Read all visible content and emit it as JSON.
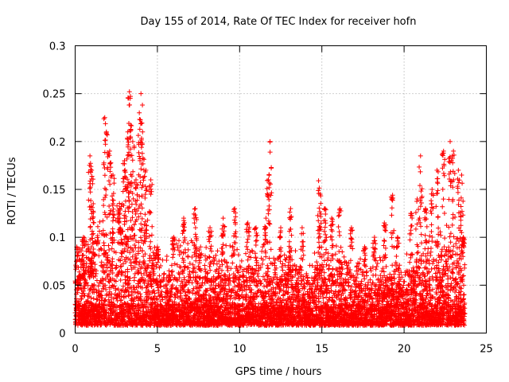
{
  "chart_data": {
    "type": "scatter",
    "title": "Day 155 of 2014, Rate Of TEC Index for receiver hofn",
    "xlabel": "GPS time / hours",
    "ylabel": "ROTI / TECUs",
    "xlim": [
      0,
      25
    ],
    "ylim": [
      0,
      0.3
    ],
    "xticks": [
      0,
      5,
      10,
      15,
      20,
      25
    ],
    "yticks": [
      0,
      0.05,
      0.1,
      0.15,
      0.2,
      0.25,
      0.3
    ],
    "xtick_labels": [
      "0",
      "5",
      "10",
      "15",
      "20",
      "25"
    ],
    "ytick_labels": [
      "0",
      "0.05",
      "0.1",
      "0.15",
      "0.2",
      "0.25",
      "0.3"
    ],
    "grid": true,
    "marker": "+",
    "color": "#ff0000",
    "points": [
      [
        0.1,
        0.09
      ],
      [
        0.3,
        0.06
      ],
      [
        0.5,
        0.1
      ],
      [
        0.9,
        0.185
      ],
      [
        1.0,
        0.17
      ],
      [
        1.1,
        0.135
      ],
      [
        1.8,
        0.225
      ],
      [
        1.9,
        0.21
      ],
      [
        2.1,
        0.19
      ],
      [
        2.3,
        0.165
      ],
      [
        2.7,
        0.13
      ],
      [
        3.0,
        0.18
      ],
      [
        3.2,
        0.21
      ],
      [
        3.3,
        0.252
      ],
      [
        3.35,
        0.245
      ],
      [
        3.5,
        0.2
      ],
      [
        3.7,
        0.16
      ],
      [
        3.9,
        0.23
      ],
      [
        4.0,
        0.25
      ],
      [
        4.1,
        0.21
      ],
      [
        4.3,
        0.17
      ],
      [
        4.6,
        0.16
      ],
      [
        5.0,
        0.09
      ],
      [
        6.0,
        0.1
      ],
      [
        6.6,
        0.12
      ],
      [
        7.3,
        0.13
      ],
      [
        8.2,
        0.11
      ],
      [
        9.0,
        0.12
      ],
      [
        9.7,
        0.13
      ],
      [
        10.5,
        0.115
      ],
      [
        11.0,
        0.11
      ],
      [
        11.6,
        0.12
      ],
      [
        11.75,
        0.16
      ],
      [
        11.85,
        0.2
      ],
      [
        12.5,
        0.11
      ],
      [
        13.1,
        0.13
      ],
      [
        13.8,
        0.11
      ],
      [
        14.8,
        0.159
      ],
      [
        14.9,
        0.145
      ],
      [
        15.2,
        0.13
      ],
      [
        15.6,
        0.12
      ],
      [
        16.1,
        0.13
      ],
      [
        16.8,
        0.11
      ],
      [
        17.6,
        0.09
      ],
      [
        18.2,
        0.1
      ],
      [
        18.8,
        0.115
      ],
      [
        19.3,
        0.144
      ],
      [
        19.6,
        0.1
      ],
      [
        20.4,
        0.125
      ],
      [
        20.8,
        0.14
      ],
      [
        21.0,
        0.185
      ],
      [
        21.3,
        0.13
      ],
      [
        21.7,
        0.15
      ],
      [
        22.0,
        0.17
      ],
      [
        22.4,
        0.19
      ],
      [
        22.8,
        0.2
      ],
      [
        23.0,
        0.19
      ],
      [
        23.3,
        0.17
      ],
      [
        23.5,
        0.165
      ],
      [
        23.6,
        0.1
      ]
    ],
    "envelope": [
      [
        0.0,
        0.09
      ],
      [
        0.5,
        0.1
      ],
      [
        1.0,
        0.12
      ],
      [
        1.5,
        0.13
      ],
      [
        2.0,
        0.14
      ],
      [
        2.5,
        0.15
      ],
      [
        3.0,
        0.17
      ],
      [
        3.5,
        0.16
      ],
      [
        4.0,
        0.15
      ],
      [
        4.5,
        0.13
      ],
      [
        5.0,
        0.09
      ],
      [
        5.5,
        0.08
      ],
      [
        6.0,
        0.1
      ],
      [
        6.5,
        0.11
      ],
      [
        7.0,
        0.1
      ],
      [
        7.5,
        0.11
      ],
      [
        8.0,
        0.09
      ],
      [
        8.5,
        0.09
      ],
      [
        9.0,
        0.1
      ],
      [
        9.5,
        0.11
      ],
      [
        10.0,
        0.09
      ],
      [
        10.5,
        0.1
      ],
      [
        11.0,
        0.09
      ],
      [
        11.5,
        0.1
      ],
      [
        12.0,
        0.09
      ],
      [
        12.5,
        0.09
      ],
      [
        13.0,
        0.1
      ],
      [
        13.5,
        0.09
      ],
      [
        14.0,
        0.07
      ],
      [
        14.5,
        0.09
      ],
      [
        15.0,
        0.11
      ],
      [
        15.5,
        0.1
      ],
      [
        16.0,
        0.1
      ],
      [
        16.5,
        0.09
      ],
      [
        17.0,
        0.08
      ],
      [
        17.5,
        0.08
      ],
      [
        18.0,
        0.08
      ],
      [
        18.5,
        0.09
      ],
      [
        19.0,
        0.08
      ],
      [
        19.5,
        0.08
      ],
      [
        20.0,
        0.08
      ],
      [
        20.5,
        0.09
      ],
      [
        21.0,
        0.1
      ],
      [
        21.5,
        0.11
      ],
      [
        22.0,
        0.12
      ],
      [
        22.5,
        0.13
      ],
      [
        23.0,
        0.13
      ],
      [
        23.5,
        0.12
      ],
      [
        23.7,
        0.11
      ]
    ],
    "baseline": [
      0.008,
      0.03
    ]
  }
}
